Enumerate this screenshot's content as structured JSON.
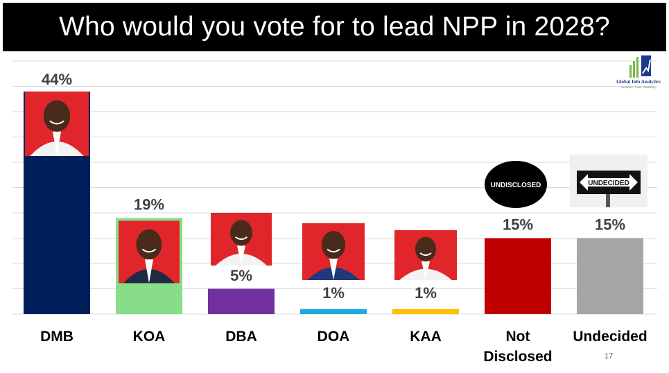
{
  "title": "Who would you vote for to lead NPP in 2028?",
  "page_number": "17",
  "logo": {
    "name": "Global Info Analytics",
    "tagline": "Analytics · Polls · Modelling"
  },
  "chart_data": {
    "type": "bar",
    "title": "Who would you vote for to lead NPP in 2028?",
    "xlabel": "",
    "ylabel": "",
    "ylim": [
      0,
      44
    ],
    "grid": true,
    "categories": [
      "DMB",
      "KOA",
      "DBA",
      "DOA",
      "KAA",
      "Not Disclosed",
      "Undecided"
    ],
    "category_lines": [
      [
        "DMB"
      ],
      [
        "KOA"
      ],
      [
        "DBA"
      ],
      [
        "DOA"
      ],
      [
        "KAA"
      ],
      [
        "Not",
        "Disclosed"
      ],
      [
        "Undecided"
      ]
    ],
    "values": [
      44,
      19,
      5,
      1,
      1,
      15,
      15
    ],
    "value_labels": [
      "44%",
      "19%",
      "5%",
      "1%",
      "1%",
      "15%",
      "15%"
    ],
    "colors": [
      "#00205b",
      "#88dd88",
      "#7030a0",
      "#1fa9e1",
      "#ffc000",
      "#c00000",
      "#a6a6a6"
    ],
    "photo_captions": [
      "",
      "",
      "",
      "",
      "",
      "UNDISCLOSED",
      "UNDECIDED"
    ]
  }
}
